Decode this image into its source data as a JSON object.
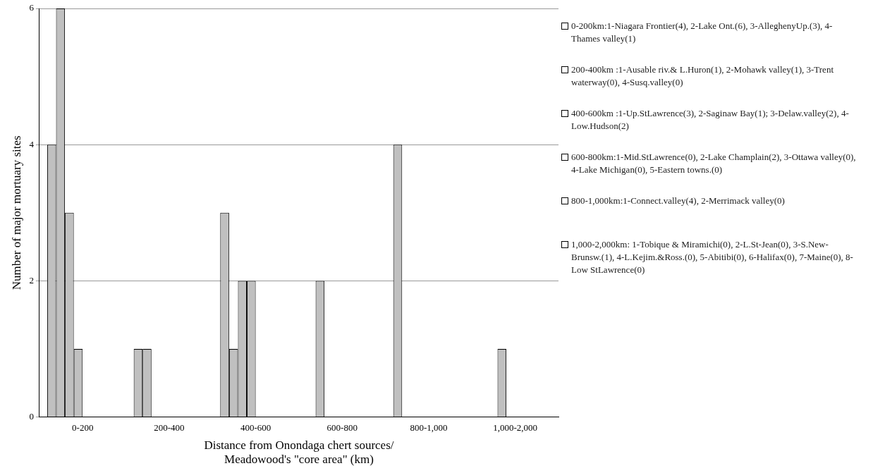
{
  "chart_data": {
    "type": "bar",
    "xlabel": "Distance from Onondaga chert sources/ Meadowood's \"core area\" (km)",
    "ylabel": "Number of major mortuary sites",
    "categories": [
      "0-200",
      "200-400",
      "400-600",
      "600-800",
      "800-1,000",
      "1,000-2,000"
    ],
    "series": [
      {
        "color": "#c0c0c0",
        "values": [
          4,
          1,
          3,
          0,
          4,
          0
        ]
      },
      {
        "color": "#c0c0c0",
        "values": [
          6,
          1,
          1,
          2,
          0,
          0
        ]
      },
      {
        "color": "#c0c0c0",
        "values": [
          3,
          0,
          2,
          0,
          null,
          1
        ]
      },
      {
        "color": "#c0c0c0",
        "values": [
          1,
          0,
          2,
          0,
          null,
          0
        ]
      },
      {
        "color": "#c0c0c0",
        "values": [
          null,
          null,
          null,
          0,
          null,
          0
        ]
      },
      {
        "color": "#c0c0c0",
        "values": [
          null,
          null,
          null,
          null,
          null,
          0
        ]
      },
      {
        "color": "#c0c0c0",
        "values": [
          null,
          null,
          null,
          null,
          null,
          0
        ]
      },
      {
        "color": "#c0c0c0",
        "values": [
          null,
          null,
          null,
          null,
          null,
          0
        ]
      }
    ],
    "ylim": [
      0,
      6
    ],
    "yticks": [
      0,
      2,
      4,
      6
    ],
    "grid": "y",
    "annotations": [
      "0-200km:1-Niagara Frontier(4), 2-Lake Ont.(6), 3-AlleghenyUp.(3), 4-Thames valley(1)",
      "200-400km :1-Ausable riv.& L.Huron(1), 2-Mohawk valley(1), 3-Trent waterway(0), 4-Susq.valley(0)",
      "400-600km :1-Up.StLawrence(3), 2-Saginaw Bay(1); 3-Delaw.valley(2), 4-Low.Hudson(2)",
      "600-800km:1-Mid.StLawrence(0), 2-Lake Champlain(2), 3-Ottawa valley(0), 4-Lake Michigan(0), 5-Eastern towns.(0)",
      "800-1,000km:1-Connect.valley(4), 2-Merrimack valley(0)",
      "1,000-2,000km: 1-Tobique & Miramichi(0), 2-L.St-Jean(0), 3-S.New-Brunsw.(1), 4-L.Kejim.&Ross.(0), 5-Abitibi(0), 6-Halifax(0), 7-Maine(0), 8-Low StLawrence(0)"
    ]
  }
}
